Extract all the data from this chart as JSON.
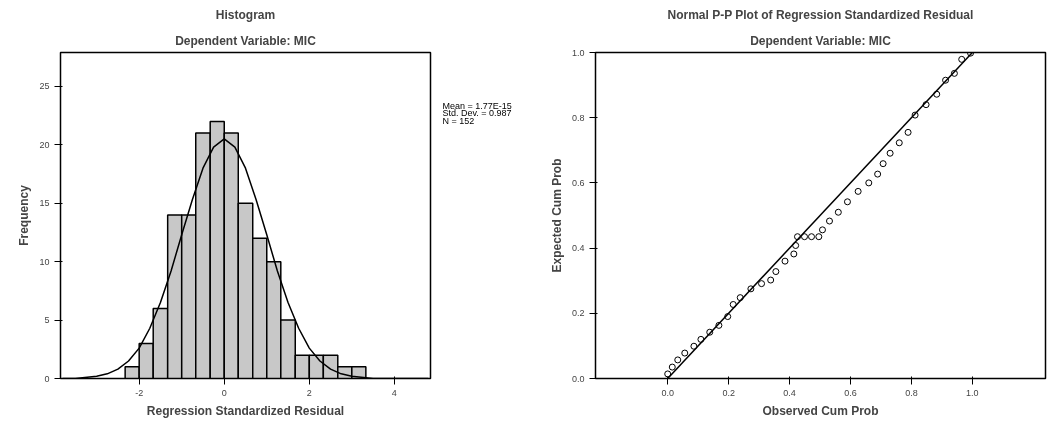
{
  "chart_data": [
    {
      "type": "histogram",
      "title": "Histogram",
      "subtitle": "Dependent Variable: MIC",
      "xlabel": "Regression Standardized Residual",
      "ylabel": "Frequency",
      "annotations": [
        "Mean = 1.77E-15",
        "Std. Dev. = 0.987",
        "N = 152"
      ],
      "series": [
        {
          "color": "#c8c8c8",
          "bins": [
            -2.33,
            -2,
            -1.67,
            -1.33,
            -1,
            -0.67,
            -0.33,
            0,
            0.33,
            0.67,
            1,
            1.33,
            1.67,
            2,
            2.33,
            2.67,
            3,
            3.33
          ],
          "values": [
            1,
            3,
            6,
            14,
            14,
            21,
            22,
            21,
            15,
            12,
            10,
            5,
            2,
            2,
            2,
            1,
            1
          ]
        },
        {
          "type": "line",
          "color": "#000000",
          "x": [
            -3.8,
            -3.5,
            -3,
            -2.75,
            -2.5,
            -2.25,
            -2,
            -1.75,
            -1.5,
            -1.25,
            -1,
            -0.75,
            -0.5,
            -0.25,
            0,
            0.25,
            0.5,
            0.75,
            1,
            1.25,
            1.5,
            1.75,
            2,
            2.25,
            2.5,
            2.75,
            3,
            3.5,
            4,
            4.5,
            4.8
          ],
          "values": [
            0,
            0,
            0.2,
            0.4,
            0.8,
            1.5,
            2.6,
            4.3,
            6.5,
            9.2,
            12.3,
            15.3,
            18,
            19.8,
            20.5,
            19.8,
            18,
            15.3,
            12.3,
            9.2,
            6.5,
            4.3,
            2.6,
            1.5,
            0.8,
            0.4,
            0.2,
            0,
            0,
            0,
            0
          ]
        }
      ],
      "xlim": [
        -3.85,
        4.85
      ],
      "ylim": [
        0,
        27.9
      ],
      "xticks": [
        -2,
        0,
        2,
        4
      ],
      "yticks": [
        0,
        5,
        10,
        15,
        20,
        25
      ],
      "grid": false
    },
    {
      "type": "scatter",
      "title": "Normal P-P Plot of Regression Standardized Residual",
      "subtitle": "Dependent Variable: MIC",
      "xlabel": "Observed Cum Prob",
      "ylabel": "Expected Cum Prob",
      "series": [
        {
          "color": "#000000",
          "marker": "circle",
          "x": [
            0.0,
            0.015,
            0.033,
            0.056,
            0.086,
            0.109,
            0.138,
            0.168,
            0.197,
            0.215,
            0.238,
            0.273,
            0.308,
            0.338,
            0.355,
            0.385,
            0.414,
            0.42,
            0.426,
            0.449,
            0.472,
            0.496,
            0.508,
            0.531,
            0.56,
            0.59,
            0.625,
            0.66,
            0.689,
            0.707,
            0.73,
            0.76,
            0.789,
            0.812,
            0.848,
            0.883,
            0.912,
            0.941,
            0.965,
            0.994
          ],
          "values": [
            0.014,
            0.035,
            0.057,
            0.078,
            0.099,
            0.12,
            0.142,
            0.163,
            0.19,
            0.227,
            0.248,
            0.275,
            0.291,
            0.302,
            0.328,
            0.36,
            0.382,
            0.408,
            0.435,
            0.435,
            0.435,
            0.435,
            0.456,
            0.483,
            0.51,
            0.542,
            0.574,
            0.6,
            0.627,
            0.659,
            0.691,
            0.723,
            0.755,
            0.808,
            0.84,
            0.872,
            0.915,
            0.936,
            0.979,
            0.998
          ]
        },
        {
          "type": "line",
          "color": "#000000",
          "x": [
            0,
            1
          ],
          "values": [
            0,
            1
          ]
        }
      ],
      "xlim": [
        -0.237,
        1.24
      ],
      "ylim": [
        0,
        1.0
      ],
      "xticks": [
        {
          "value": 0,
          "label": "0.0"
        },
        {
          "value": 0.2,
          "label": "0.2"
        },
        {
          "value": 0.4,
          "label": "0.4"
        },
        {
          "value": 0.6,
          "label": "0.6"
        },
        {
          "value": 0.8,
          "label": "0.8"
        },
        {
          "value": 1.0,
          "label": "1.0"
        }
      ],
      "yticks": [
        {
          "value": 0,
          "label": "0.0"
        },
        {
          "value": 0.2,
          "label": "0.2"
        },
        {
          "value": 0.4,
          "label": "0.4"
        },
        {
          "value": 0.6,
          "label": "0.6"
        },
        {
          "value": 0.8,
          "label": "0.8"
        },
        {
          "value": 1.0,
          "label": "1.0"
        }
      ],
      "grid": false
    }
  ]
}
